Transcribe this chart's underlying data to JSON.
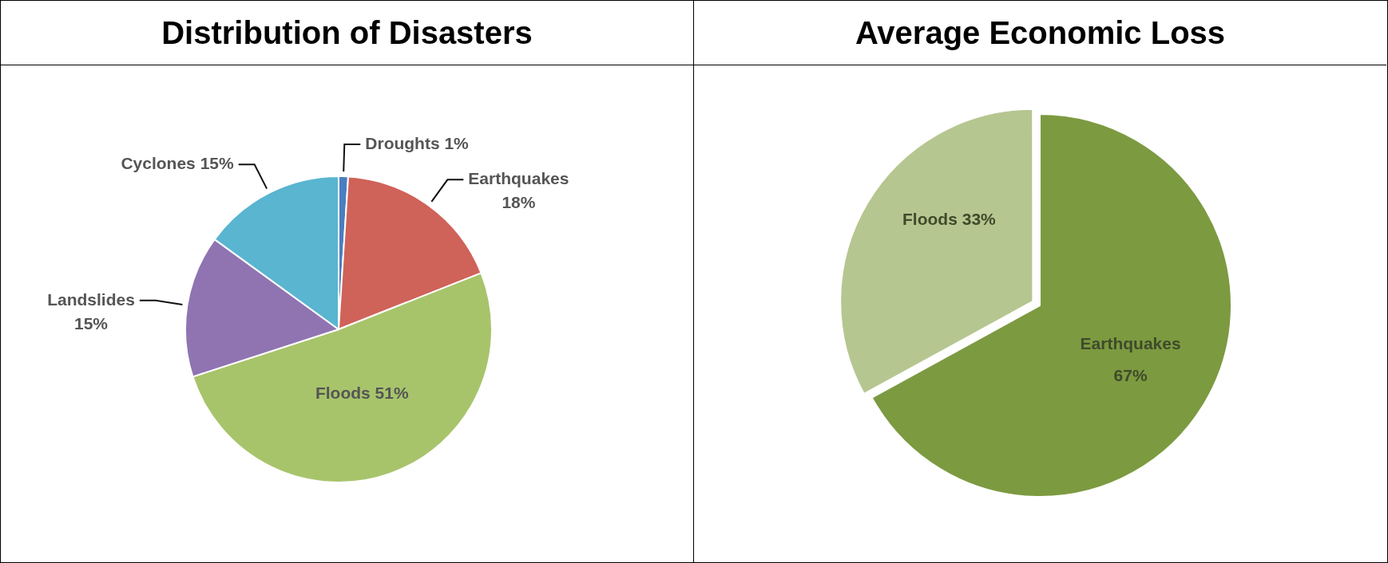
{
  "chart_data": [
    {
      "type": "pie",
      "title": "Distribution of Disasters",
      "categories": [
        "Droughts",
        "Earthquakes",
        "Floods",
        "Landslides",
        "Cyclones"
      ],
      "values": [
        1,
        18,
        51,
        15,
        15
      ],
      "colors": [
        "#4a7ec0",
        "#cf6259",
        "#a7c46b",
        "#8f74b1",
        "#59b5d0"
      ],
      "value_labels": [
        "1%",
        "18%",
        "51%",
        "15%",
        "15%"
      ],
      "legend": false
    },
    {
      "type": "pie",
      "title": "Average Economic Loss",
      "categories": [
        "Earthquakes",
        "Floods"
      ],
      "values": [
        67,
        33
      ],
      "colors": [
        "#7c9a40",
        "#b6c690"
      ],
      "value_labels": [
        "67%",
        "33%"
      ],
      "legend": false
    }
  ]
}
